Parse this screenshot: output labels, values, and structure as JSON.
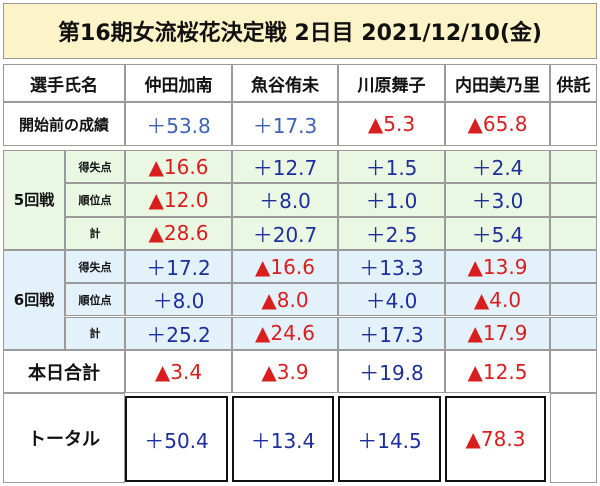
{
  "title": "第16期女流桜花決定戦  2日目 2021/12/10(金)",
  "table": {
    "header": [
      "選手氏名",
      "仲田加南",
      "魚谷侑未",
      "川原舞子",
      "内田美乃里",
      "供託"
    ],
    "before": {
      "label": "開始前の成績",
      "values": [
        "＋53.8",
        "＋17.3",
        "▲5.3",
        "▲65.8"
      ]
    },
    "rounds": [
      {
        "label": "5回戦",
        "rows": [
          {
            "label": "得失点",
            "values": [
              "▲16.6",
              "＋12.7",
              "＋1.5",
              "＋2.4"
            ]
          },
          {
            "label": "順位点",
            "values": [
              "▲12.0",
              "＋8.0",
              "＋1.0",
              "＋3.0"
            ]
          },
          {
            "label": "計",
            "values": [
              "▲28.6",
              "＋20.7",
              "＋2.5",
              "＋5.4"
            ]
          }
        ]
      },
      {
        "label": "6回戦",
        "rows": [
          {
            "label": "得失点",
            "values": [
              "＋17.2",
              "▲16.6",
              "＋13.3",
              "▲13.9"
            ]
          },
          {
            "label": "順位点",
            "values": [
              "＋8.0",
              "▲8.0",
              "＋4.0",
              "▲4.0"
            ]
          },
          {
            "label": "計",
            "values": [
              "＋25.2",
              "▲24.6",
              "＋17.3",
              "▲17.9"
            ]
          }
        ]
      }
    ],
    "day_total": {
      "label": "本日合計",
      "values": [
        "▲3.4",
        "▲3.9",
        "＋19.8",
        "▲12.5"
      ]
    },
    "total": {
      "label": "トータル",
      "values": [
        "＋50.4",
        "＋13.4",
        "＋14.5",
        "▲78.3"
      ]
    }
  }
}
